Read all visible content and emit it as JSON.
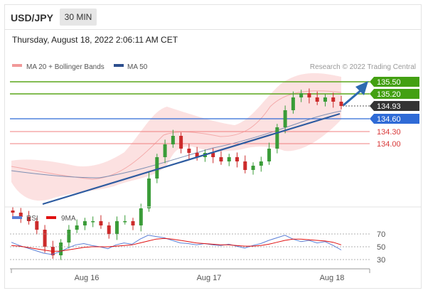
{
  "header": {
    "symbol": "USD/JPY",
    "timeframe": "30 MIN"
  },
  "datetime": "Thursday, August 18, 2022 2:06:11 AM CET",
  "legend": {
    "ma20": "MA 20 + Bollinger Bands",
    "ma50": "MA 50"
  },
  "credit": "Research © 2022 Trading Central",
  "colors": {
    "up": "#3a9c38",
    "down": "#cc2b2b",
    "resistance": "#5aa51a",
    "support": "#2f6bd6",
    "level_red": "#e84c4c",
    "ma20_band": "#f19999",
    "ma50": "#2d4f8e",
    "rsi": "#5b7fd6",
    "rsi_ma": "#e01010",
    "trend": "#2d5ba0",
    "price_tag": "#333333"
  },
  "chart_data": {
    "type": "candlestick",
    "x_axis_labels": [
      "Aug 16",
      "Aug 17",
      "Aug 18"
    ],
    "price_levels": [
      {
        "label": "135.50",
        "value": 135.5,
        "kind": "resistance"
      },
      {
        "label": "135.20",
        "value": 135.2,
        "kind": "resistance"
      },
      {
        "label": "134.93",
        "value": 134.93,
        "kind": "last"
      },
      {
        "label": "134.60",
        "value": 134.6,
        "kind": "pivot"
      },
      {
        "label": "134.30",
        "value": 134.3,
        "kind": "support"
      },
      {
        "label": "134.00",
        "value": 134.0,
        "kind": "support"
      }
    ],
    "series_approx": {
      "close": [
        132.4,
        132.3,
        132.2,
        132.0,
        131.6,
        131.4,
        131.7,
        132.0,
        132.1,
        132.2,
        132.2,
        132.1,
        131.9,
        132.2,
        132.2,
        132.1,
        132.5,
        133.2,
        133.7,
        134.0,
        134.2,
        133.9,
        133.8,
        133.7,
        133.8,
        133.7,
        133.6,
        133.7,
        133.6,
        133.4,
        133.5,
        133.6,
        133.9,
        134.4,
        134.8,
        135.1,
        135.2,
        135.1,
        135.0,
        135.1,
        135.0,
        134.9
      ],
      "rsi": [
        57,
        52,
        48,
        44,
        40,
        38,
        42,
        48,
        53,
        55,
        52,
        50,
        47,
        53,
        56,
        54,
        62,
        68,
        66,
        64,
        60,
        56,
        55,
        53,
        55,
        53,
        52,
        54,
        51,
        48,
        52,
        55,
        60,
        64,
        68,
        62,
        58,
        60,
        56,
        58,
        52,
        45
      ],
      "rsi_ma": [
        52,
        51,
        49,
        47,
        45,
        43,
        43,
        45,
        47,
        49,
        50,
        50,
        50,
        51,
        52,
        53,
        56,
        59,
        62,
        63,
        62,
        60,
        58,
        56,
        55,
        54,
        53,
        53,
        52,
        51,
        51,
        52,
        54,
        57,
        60,
        62,
        62,
        61,
        60,
        59,
        57,
        53
      ]
    },
    "rsi_panel": {
      "legend_rsi": "RSI",
      "legend_ma": "9MA",
      "levels": [
        "70",
        "50",
        "30"
      ]
    }
  }
}
